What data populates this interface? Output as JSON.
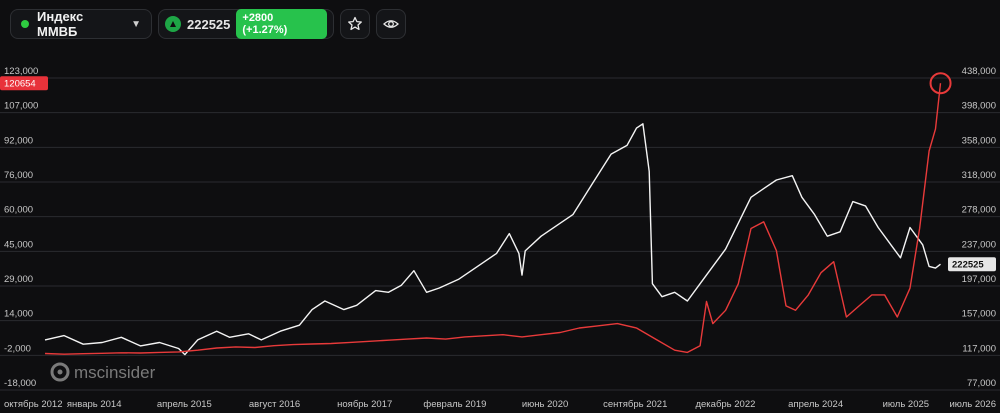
{
  "toolbar": {
    "ticker_name": "Индекс ММВБ",
    "price": "222525",
    "change_badge": "+2800 (+1.27%)",
    "colors": {
      "status_dot": "#2ecc40",
      "up": "#27c24c"
    },
    "icons": [
      "caret-down-icon",
      "triangle-up-icon",
      "star-icon",
      "eye-icon"
    ]
  },
  "watermark": "mscinsider",
  "chart_data": {
    "type": "line",
    "x_tick_labels": [
      "октябрь 2012",
      "январь 2014",
      "апрель 2015",
      "август 2016",
      "ноябрь 2017",
      "февраль 2019",
      "июнь 2020",
      "сентябрь 2021",
      "декабрь 2022",
      "апрель 2024",
      "июль 2025",
      "июль 2026"
    ],
    "left_axis": {
      "ticks": [
        "123,000",
        "107,000",
        "92,000",
        "76,000",
        "60,000",
        "45,000",
        "29,000",
        "14,000",
        "-2,000",
        "-18,000"
      ],
      "range": [
        -18000,
        123000
      ],
      "current_label": "120654",
      "current_value": 120654
    },
    "right_axis": {
      "ticks": [
        "438,000",
        "398,000",
        "358,000",
        "318,000",
        "278,000",
        "237,000",
        "197,000",
        "157,000",
        "117,000",
        "77,000"
      ],
      "range": [
        77000,
        438000
      ],
      "current_label": "222525",
      "current_value": 222525
    },
    "series": [
      {
        "axis": "right",
        "color": "#f4f4f4",
        "points": [
          [
            2012.7,
            135000
          ],
          [
            2013.0,
            140000
          ],
          [
            2013.3,
            130000
          ],
          [
            2013.6,
            132000
          ],
          [
            2013.9,
            138000
          ],
          [
            2014.2,
            128000
          ],
          [
            2014.5,
            132000
          ],
          [
            2014.8,
            125000
          ],
          [
            2014.9,
            118000
          ],
          [
            2015.1,
            135000
          ],
          [
            2015.4,
            145000
          ],
          [
            2015.6,
            138000
          ],
          [
            2015.9,
            142000
          ],
          [
            2016.1,
            135000
          ],
          [
            2016.4,
            145000
          ],
          [
            2016.7,
            152000
          ],
          [
            2016.9,
            170000
          ],
          [
            2017.1,
            180000
          ],
          [
            2017.4,
            170000
          ],
          [
            2017.6,
            175000
          ],
          [
            2017.9,
            192000
          ],
          [
            2018.1,
            190000
          ],
          [
            2018.3,
            198000
          ],
          [
            2018.5,
            215000
          ],
          [
            2018.7,
            190000
          ],
          [
            2018.9,
            195000
          ],
          [
            2019.2,
            205000
          ],
          [
            2019.5,
            220000
          ],
          [
            2019.8,
            235000
          ],
          [
            2020.0,
            258000
          ],
          [
            2020.15,
            235000
          ],
          [
            2020.2,
            210000
          ],
          [
            2020.25,
            238000
          ],
          [
            2020.5,
            255000
          ],
          [
            2020.8,
            270000
          ],
          [
            2021.0,
            280000
          ],
          [
            2021.3,
            315000
          ],
          [
            2021.6,
            350000
          ],
          [
            2021.85,
            360000
          ],
          [
            2022.0,
            380000
          ],
          [
            2022.1,
            385000
          ],
          [
            2022.2,
            330000
          ],
          [
            2022.25,
            200000
          ],
          [
            2022.4,
            185000
          ],
          [
            2022.6,
            190000
          ],
          [
            2022.8,
            180000
          ],
          [
            2023.0,
            200000
          ],
          [
            2023.2,
            220000
          ],
          [
            2023.4,
            240000
          ],
          [
            2023.6,
            270000
          ],
          [
            2023.8,
            300000
          ],
          [
            2024.0,
            310000
          ],
          [
            2024.2,
            320000
          ],
          [
            2024.45,
            325000
          ],
          [
            2024.6,
            300000
          ],
          [
            2024.8,
            280000
          ],
          [
            2025.0,
            255000
          ],
          [
            2025.2,
            260000
          ],
          [
            2025.4,
            295000
          ],
          [
            2025.6,
            290000
          ],
          [
            2025.8,
            265000
          ],
          [
            2026.0,
            245000
          ],
          [
            2026.15,
            230000
          ],
          [
            2026.3,
            265000
          ],
          [
            2026.5,
            245000
          ],
          [
            2026.6,
            220000
          ],
          [
            2026.7,
            218000
          ],
          [
            2026.78,
            222525
          ]
        ]
      },
      {
        "axis": "left",
        "color": "#e83a3a",
        "points": [
          [
            2012.7,
            -1500
          ],
          [
            2013.0,
            -1800
          ],
          [
            2013.3,
            -1600
          ],
          [
            2013.6,
            -1400
          ],
          [
            2013.9,
            -1200
          ],
          [
            2014.2,
            -1300
          ],
          [
            2014.5,
            -1000
          ],
          [
            2014.8,
            -800
          ],
          [
            2015.1,
            0
          ],
          [
            2015.4,
            1000
          ],
          [
            2015.7,
            1500
          ],
          [
            2016.0,
            1200
          ],
          [
            2016.3,
            2000
          ],
          [
            2016.6,
            2500
          ],
          [
            2016.9,
            2800
          ],
          [
            2017.2,
            3000
          ],
          [
            2017.5,
            3500
          ],
          [
            2017.8,
            4000
          ],
          [
            2018.1,
            4500
          ],
          [
            2018.4,
            5000
          ],
          [
            2018.7,
            5500
          ],
          [
            2019.0,
            5000
          ],
          [
            2019.3,
            6000
          ],
          [
            2019.6,
            6500
          ],
          [
            2019.9,
            7000
          ],
          [
            2020.2,
            6000
          ],
          [
            2020.5,
            7000
          ],
          [
            2020.8,
            8000
          ],
          [
            2021.1,
            10000
          ],
          [
            2021.4,
            11000
          ],
          [
            2021.7,
            12000
          ],
          [
            2022.0,
            10000
          ],
          [
            2022.3,
            5000
          ],
          [
            2022.6,
            0
          ],
          [
            2022.8,
            -1000
          ],
          [
            2023.0,
            2000
          ],
          [
            2023.1,
            22000
          ],
          [
            2023.2,
            12000
          ],
          [
            2023.4,
            18000
          ],
          [
            2023.6,
            30000
          ],
          [
            2023.8,
            55000
          ],
          [
            2024.0,
            58000
          ],
          [
            2024.2,
            45000
          ],
          [
            2024.35,
            20000
          ],
          [
            2024.5,
            18000
          ],
          [
            2024.7,
            25000
          ],
          [
            2024.9,
            35000
          ],
          [
            2025.1,
            40000
          ],
          [
            2025.3,
            15000
          ],
          [
            2025.5,
            20000
          ],
          [
            2025.7,
            25000
          ],
          [
            2025.9,
            25000
          ],
          [
            2026.1,
            15000
          ],
          [
            2026.3,
            28000
          ],
          [
            2026.45,
            55000
          ],
          [
            2026.6,
            90000
          ],
          [
            2026.7,
            100000
          ],
          [
            2026.78,
            120654
          ]
        ]
      }
    ],
    "marker": {
      "type": "circle",
      "color": "#e83a3a",
      "x": 2026.78,
      "value": 120654,
      "axis": "left"
    }
  }
}
